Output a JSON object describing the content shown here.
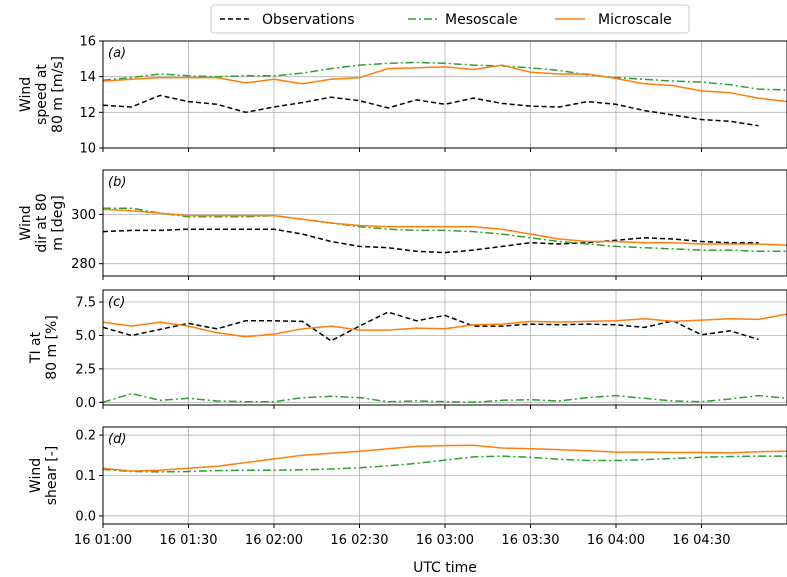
{
  "chart_data": {
    "type": "line",
    "xlabel": "UTC time",
    "x_ticks": [
      "16 01:00",
      "16 01:30",
      "16 02:00",
      "16 02:30",
      "16 03:00",
      "16 03:30",
      "16 04:00",
      "16 04:30"
    ],
    "xlim": [
      "16 01:00",
      "16 05:00"
    ],
    "grid": true,
    "legend": {
      "placement": "top-center",
      "entries": [
        {
          "name": "Observations",
          "color": "#000000",
          "style": "dashed"
        },
        {
          "name": "Mesoscale",
          "color": "#2ca02c",
          "style": "dashdot"
        },
        {
          "name": "Microscale",
          "color": "#ff7f0e",
          "style": "solid"
        }
      ]
    },
    "panels": [
      {
        "letter": "(a)",
        "ylabel": [
          "Wind",
          "speed at",
          "80 m [m/s]"
        ],
        "ylim": [
          10,
          16
        ],
        "yticks": [
          10,
          12,
          14,
          16
        ],
        "series": [
          {
            "name": "Observations",
            "x": [
              "16 01:00",
              "16 01:10",
              "16 01:20",
              "16 01:30",
              "16 01:40",
              "16 01:50",
              "16 02:00",
              "16 02:10",
              "16 02:20",
              "16 02:30",
              "16 02:40",
              "16 02:50",
              "16 03:00",
              "16 03:10",
              "16 03:20",
              "16 03:30",
              "16 03:40",
              "16 03:50",
              "16 04:00",
              "16 04:10",
              "16 04:20",
              "16 04:30",
              "16 04:40",
              "16 04:50"
            ],
            "values": [
              12.4,
              12.3,
              12.95,
              12.6,
              12.45,
              12.0,
              12.3,
              12.55,
              12.85,
              12.65,
              12.25,
              12.7,
              12.45,
              12.8,
              12.5,
              12.35,
              12.3,
              12.6,
              12.45,
              12.1,
              11.85,
              11.6,
              11.5,
              11.25
            ]
          },
          {
            "name": "Mesoscale",
            "x": [
              "16 01:00",
              "16 01:10",
              "16 01:20",
              "16 01:30",
              "16 01:40",
              "16 01:50",
              "16 02:00",
              "16 02:10",
              "16 02:20",
              "16 02:30",
              "16 02:40",
              "16 02:50",
              "16 03:00",
              "16 03:10",
              "16 03:20",
              "16 03:30",
              "16 03:40",
              "16 03:50",
              "16 04:00",
              "16 04:10",
              "16 04:20",
              "16 04:30",
              "16 04:40",
              "16 04:50",
              "16 05:00"
            ],
            "values": [
              13.8,
              13.95,
              14.15,
              14.05,
              14.0,
              14.05,
              14.05,
              14.2,
              14.45,
              14.65,
              14.75,
              14.8,
              14.75,
              14.65,
              14.6,
              14.5,
              14.35,
              14.1,
              13.95,
              13.85,
              13.75,
              13.7,
              13.55,
              13.3,
              13.25
            ]
          },
          {
            "name": "Microscale",
            "x": [
              "16 01:00",
              "16 01:10",
              "16 01:20",
              "16 01:30",
              "16 01:40",
              "16 01:50",
              "16 02:00",
              "16 02:10",
              "16 02:20",
              "16 02:30",
              "16 02:40",
              "16 02:50",
              "16 03:00",
              "16 03:10",
              "16 03:20",
              "16 03:30",
              "16 03:40",
              "16 03:50",
              "16 04:00",
              "16 04:10",
              "16 04:20",
              "16 04:30",
              "16 04:40",
              "16 04:50",
              "16 05:00"
            ],
            "values": [
              13.75,
              13.85,
              13.95,
              13.95,
              13.95,
              13.65,
              13.85,
              13.6,
              13.85,
              13.95,
              14.45,
              14.5,
              14.55,
              14.4,
              14.65,
              14.25,
              14.15,
              14.15,
              13.9,
              13.6,
              13.5,
              13.2,
              13.1,
              12.8,
              12.6
            ]
          }
        ]
      },
      {
        "letter": "(b)",
        "ylabel": [
          "Wind",
          "dir at 80",
          "m [deg]"
        ],
        "ylim": [
          275,
          318
        ],
        "yticks": [
          280,
          300
        ],
        "series": [
          {
            "name": "Observations",
            "x": [
              "16 01:00",
              "16 01:10",
              "16 01:20",
              "16 01:30",
              "16 01:40",
              "16 01:50",
              "16 02:00",
              "16 02:10",
              "16 02:20",
              "16 02:30",
              "16 02:40",
              "16 02:50",
              "16 03:00",
              "16 03:10",
              "16 03:20",
              "16 03:30",
              "16 03:40",
              "16 03:50",
              "16 04:00",
              "16 04:10",
              "16 04:20",
              "16 04:30",
              "16 04:40",
              "16 04:50"
            ],
            "values": [
              293,
              293.5,
              293.5,
              294,
              294,
              294,
              294,
              292,
              289,
              287,
              286.5,
              285,
              284.5,
              285.5,
              287,
              288.5,
              288,
              288.5,
              289.5,
              290.5,
              290,
              289,
              288.5,
              288.5
            ]
          },
          {
            "name": "Mesoscale",
            "x": [
              "16 01:00",
              "16 01:10",
              "16 01:20",
              "16 01:30",
              "16 01:40",
              "16 01:50",
              "16 02:00",
              "16 02:10",
              "16 02:20",
              "16 02:30",
              "16 02:40",
              "16 02:50",
              "16 03:00",
              "16 03:10",
              "16 03:20",
              "16 03:30",
              "16 03:40",
              "16 03:50",
              "16 04:00",
              "16 04:10",
              "16 04:20",
              "16 04:30",
              "16 04:40",
              "16 04:50",
              "16 05:00"
            ],
            "values": [
              302.5,
              302.5,
              300.5,
              299,
              299,
              299,
              299.5,
              298,
              296.5,
              295,
              294,
              293.5,
              293.5,
              293,
              292,
              290.5,
              289,
              288,
              287,
              286.5,
              286,
              285.5,
              285.5,
              285,
              285
            ]
          },
          {
            "name": "Microscale",
            "x": [
              "16 01:00",
              "16 01:10",
              "16 01:20",
              "16 01:30",
              "16 01:40",
              "16 01:50",
              "16 02:00",
              "16 02:10",
              "16 02:20",
              "16 02:30",
              "16 02:40",
              "16 02:50",
              "16 03:00",
              "16 03:10",
              "16 03:20",
              "16 03:30",
              "16 03:40",
              "16 03:50",
              "16 04:00",
              "16 04:10",
              "16 04:20",
              "16 04:30",
              "16 04:40",
              "16 04:50",
              "16 05:00"
            ],
            "values": [
              302,
              301.5,
              300.5,
              299.5,
              299.5,
              299.5,
              299.5,
              298,
              296.5,
              295.5,
              295,
              295,
              295,
              295,
              294,
              292,
              290,
              289,
              289,
              288.5,
              288.5,
              288,
              288,
              288,
              287.5
            ]
          }
        ]
      },
      {
        "letter": "(c)",
        "ylabel": [
          "TI at",
          "80 m [%]"
        ],
        "ylim": [
          -0.2,
          8.4
        ],
        "yticks": [
          0.0,
          2.5,
          5.0,
          7.5
        ],
        "series": [
          {
            "name": "Observations",
            "x": [
              "16 01:00",
              "16 01:10",
              "16 01:20",
              "16 01:30",
              "16 01:40",
              "16 01:50",
              "16 02:00",
              "16 02:10",
              "16 02:20",
              "16 02:30",
              "16 02:40",
              "16 02:50",
              "16 03:00",
              "16 03:10",
              "16 03:20",
              "16 03:30",
              "16 03:40",
              "16 03:50",
              "16 04:00",
              "16 04:10",
              "16 04:20",
              "16 04:30",
              "16 04:40",
              "16 04:50"
            ],
            "values": [
              5.6,
              5.0,
              5.45,
              5.9,
              5.5,
              6.1,
              6.1,
              6.05,
              4.6,
              5.7,
              6.75,
              6.1,
              6.5,
              5.7,
              5.7,
              5.85,
              5.8,
              5.85,
              5.8,
              5.6,
              6.1,
              5.05,
              5.35,
              4.7
            ]
          },
          {
            "name": "Mesoscale",
            "x": [
              "16 01:00",
              "16 01:10",
              "16 01:20",
              "16 01:30",
              "16 01:40",
              "16 01:50",
              "16 02:00",
              "16 02:10",
              "16 02:20",
              "16 02:30",
              "16 02:40",
              "16 02:50",
              "16 03:00",
              "16 03:10",
              "16 03:20",
              "16 03:30",
              "16 03:40",
              "16 03:50",
              "16 04:00",
              "16 04:10",
              "16 04:20",
              "16 04:30",
              "16 04:40",
              "16 04:50",
              "16 05:00"
            ],
            "values": [
              0.0,
              0.65,
              0.15,
              0.3,
              0.1,
              0.05,
              0.05,
              0.35,
              0.45,
              0.35,
              0.05,
              0.1,
              0.05,
              0.0,
              0.15,
              0.2,
              0.1,
              0.35,
              0.5,
              0.3,
              0.1,
              0.05,
              0.25,
              0.5,
              0.3
            ]
          },
          {
            "name": "Microscale",
            "x": [
              "16 01:00",
              "16 01:10",
              "16 01:20",
              "16 01:30",
              "16 01:40",
              "16 01:50",
              "16 02:00",
              "16 02:10",
              "16 02:20",
              "16 02:30",
              "16 02:40",
              "16 02:50",
              "16 03:00",
              "16 03:10",
              "16 03:20",
              "16 03:30",
              "16 03:40",
              "16 03:50",
              "16 04:00",
              "16 04:10",
              "16 04:20",
              "16 04:30",
              "16 04:40",
              "16 04:50",
              "16 05:00"
            ],
            "values": [
              6.0,
              5.7,
              6.0,
              5.7,
              5.2,
              4.9,
              5.1,
              5.5,
              5.7,
              5.4,
              5.4,
              5.55,
              5.5,
              5.8,
              5.85,
              6.05,
              6.0,
              6.05,
              6.1,
              6.25,
              6.05,
              6.15,
              6.25,
              6.2,
              6.6
            ]
          }
        ]
      },
      {
        "letter": "(d)",
        "ylabel": [
          "Wind",
          "shear [-]"
        ],
        "ylim": [
          -0.02,
          0.22
        ],
        "yticks": [
          0.0,
          0.1,
          0.2
        ],
        "series": [
          {
            "name": "Mesoscale",
            "x": [
              "16 01:00",
              "16 01:10",
              "16 01:20",
              "16 01:30",
              "16 01:40",
              "16 01:50",
              "16 02:00",
              "16 02:10",
              "16 02:20",
              "16 02:30",
              "16 02:40",
              "16 02:50",
              "16 03:00",
              "16 03:10",
              "16 03:20",
              "16 03:30",
              "16 03:40",
              "16 03:50",
              "16 04:00",
              "16 04:10",
              "16 04:20",
              "16 04:30",
              "16 04:40",
              "16 04:50",
              "16 05:00"
            ],
            "values": [
              0.115,
              0.11,
              0.109,
              0.11,
              0.112,
              0.113,
              0.113,
              0.114,
              0.116,
              0.119,
              0.124,
              0.13,
              0.138,
              0.146,
              0.148,
              0.145,
              0.14,
              0.137,
              0.137,
              0.139,
              0.142,
              0.145,
              0.147,
              0.148,
              0.148
            ]
          },
          {
            "name": "Microscale",
            "x": [
              "16 01:00",
              "16 01:10",
              "16 01:20",
              "16 01:30",
              "16 01:40",
              "16 01:50",
              "16 02:00",
              "16 02:10",
              "16 02:20",
              "16 02:30",
              "16 02:40",
              "16 02:50",
              "16 03:00",
              "16 03:10",
              "16 03:20",
              "16 03:30",
              "16 03:40",
              "16 03:50",
              "16 04:00",
              "16 04:10",
              "16 04:20",
              "16 04:30",
              "16 04:40",
              "16 04:50",
              "16 05:00"
            ],
            "values": [
              0.118,
              0.111,
              0.113,
              0.118,
              0.123,
              0.132,
              0.141,
              0.15,
              0.155,
              0.16,
              0.166,
              0.172,
              0.174,
              0.175,
              0.168,
              0.166,
              0.164,
              0.161,
              0.158,
              0.158,
              0.157,
              0.157,
              0.156,
              0.159,
              0.16
            ]
          }
        ]
      }
    ]
  }
}
